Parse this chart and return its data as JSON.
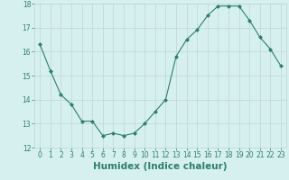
{
  "x": [
    0,
    1,
    2,
    3,
    4,
    5,
    6,
    7,
    8,
    9,
    10,
    11,
    12,
    13,
    14,
    15,
    16,
    17,
    18,
    19,
    20,
    21,
    22,
    23
  ],
  "y": [
    16.3,
    15.2,
    14.2,
    13.8,
    13.1,
    13.1,
    12.5,
    12.6,
    12.5,
    12.6,
    13.0,
    13.5,
    14.0,
    15.8,
    16.5,
    16.9,
    17.5,
    17.9,
    17.9,
    17.9,
    17.3,
    16.6,
    16.1,
    15.4
  ],
  "xlim": [
    -0.5,
    23.5
  ],
  "ylim": [
    12,
    18
  ],
  "yticks": [
    12,
    13,
    14,
    15,
    16,
    17,
    18
  ],
  "xticks": [
    0,
    1,
    2,
    3,
    4,
    5,
    6,
    7,
    8,
    9,
    10,
    11,
    12,
    13,
    14,
    15,
    16,
    17,
    18,
    19,
    20,
    21,
    22,
    23
  ],
  "xlabel": "Humidex (Indice chaleur)",
  "line_color": "#2e7d6e",
  "marker": "D",
  "marker_size": 2,
  "bg_color": "#d6f0f0",
  "grid_color": "#c0d4d4",
  "xlabel_color": "#2e7d6e",
  "tick_color": "#2e7d6e",
  "tick_fontsize": 5.5,
  "xlabel_fontsize": 7.5,
  "xlabel_fontweight": "bold"
}
